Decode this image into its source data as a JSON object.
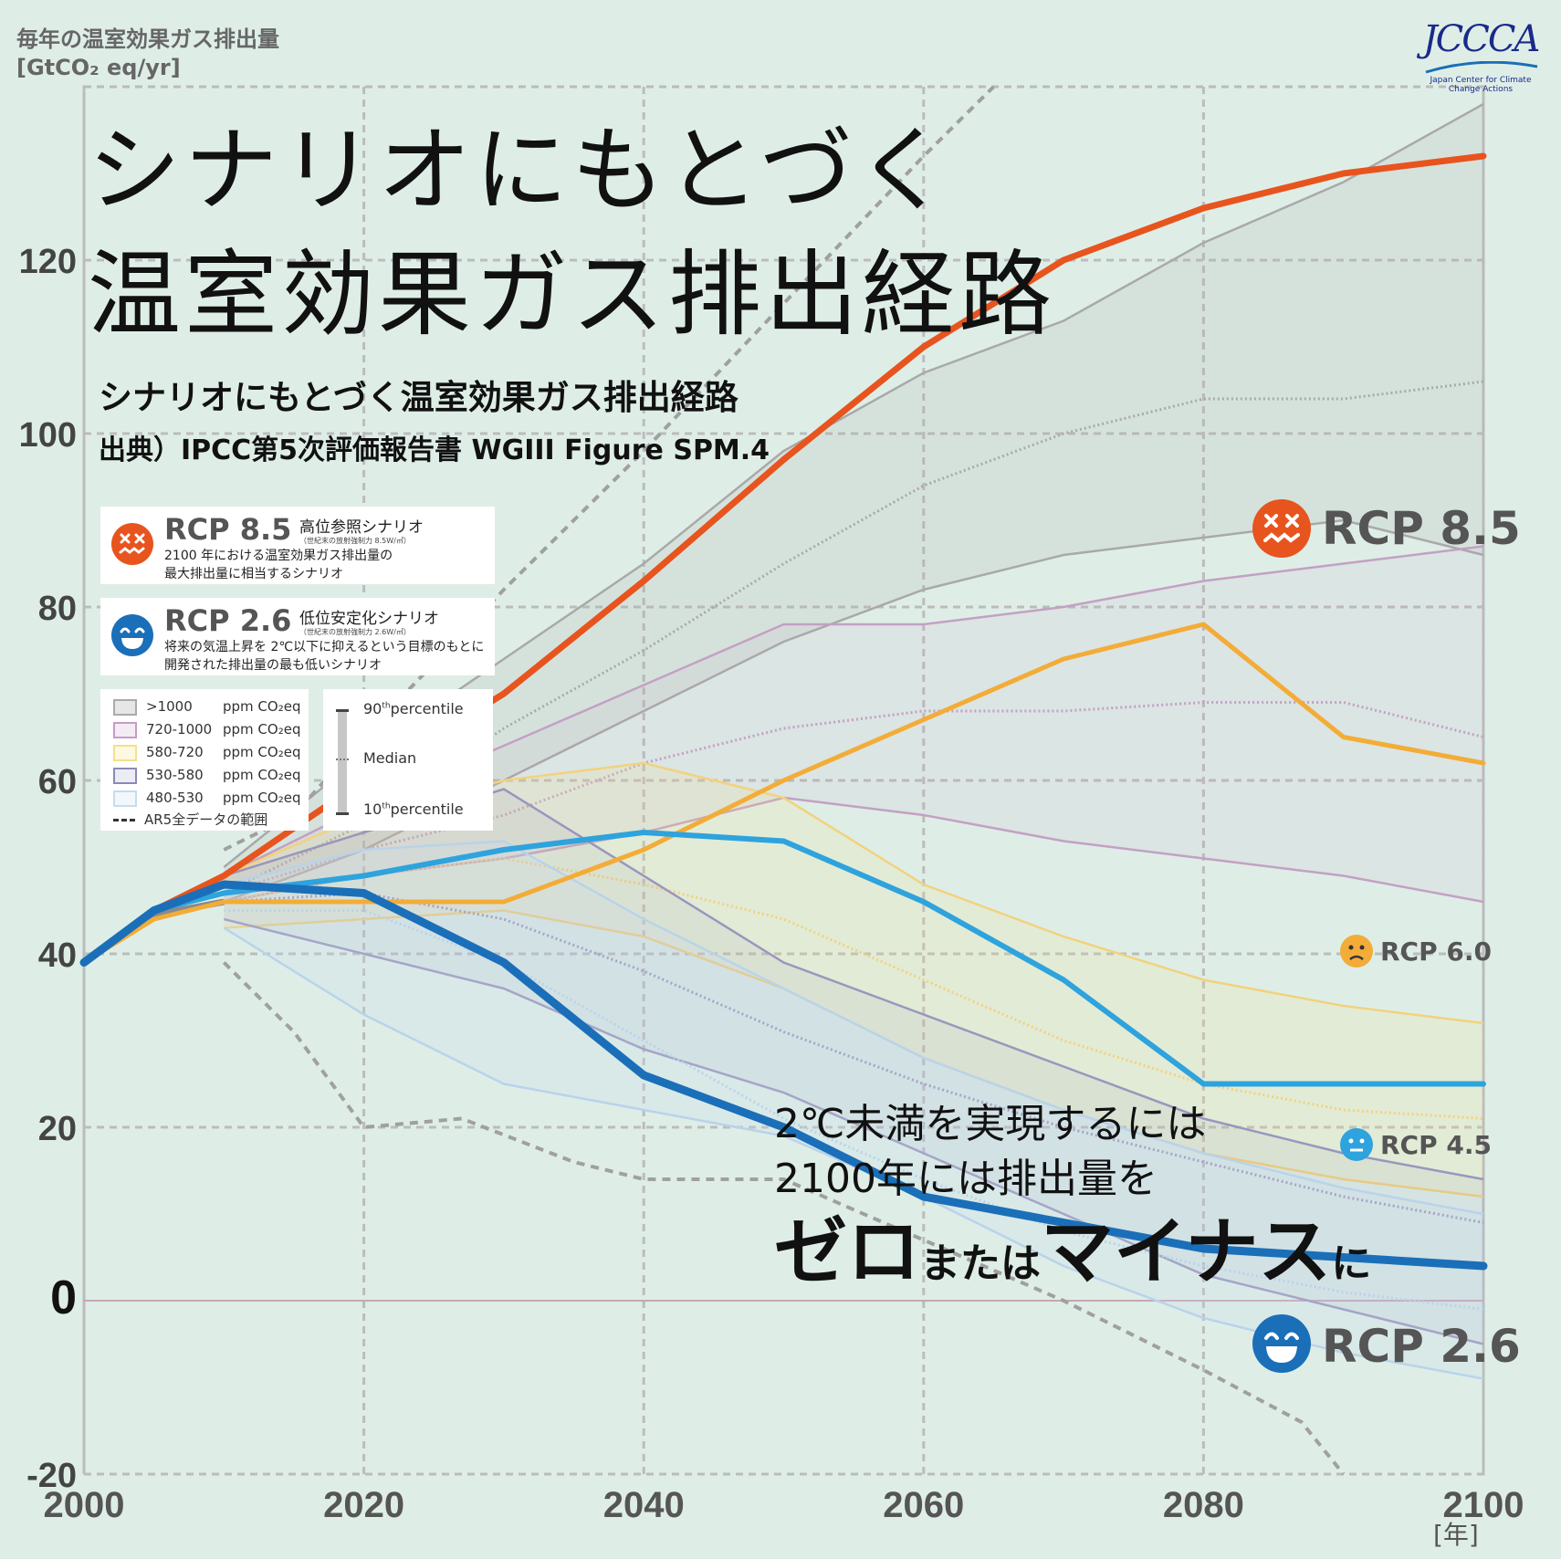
{
  "y_axis_label": [
    "毎年の温室効果ガス排出量",
    "[GtCO₂ eq/yr]"
  ],
  "big_title": [
    "シナリオにもとづく",
    "温室効果ガス排出経路"
  ],
  "subtitle": "シナリオにもとづく温室効果ガス排出経路",
  "source": "出典）IPCC第5次評価報告書 WGIII Figure SPM.4",
  "logo": {
    "mark": "JCCCA",
    "sub": "Japan Center for Climate Change Actions"
  },
  "x_unit": "[年]",
  "cards": {
    "rcp85": {
      "label": "RCP 8.5",
      "name": "高位参照シナリオ",
      "note": "（世紀末の放射強制力 8.5W/㎡）",
      "desc1": "2100 年における温室効果ガス排出量の",
      "desc2": "最大排出量に相当するシナリオ"
    },
    "rcp26": {
      "label": "RCP 2.6",
      "name": "低位安定化シナリオ",
      "note": "（世紀末の放射強制力 2.6W/㎡）",
      "desc1": "将来の気温上昇を 2℃以下に抑えるという目標のもとに",
      "desc2": "開発された排出量の最も低いシナリオ"
    }
  },
  "legend_ppm": [
    {
      "range": ">1000",
      "unit": "ppm CO₂eq",
      "color": "#aaaaaa"
    },
    {
      "range": "720-1000",
      "unit": "ppm CO₂eq",
      "color": "#c79ac7"
    },
    {
      "range": "580-720",
      "unit": "ppm CO₂eq",
      "color": "#f5e08a"
    },
    {
      "range": "530-580",
      "unit": "ppm CO₂eq",
      "color": "#8a8ab8"
    },
    {
      "range": "480-530",
      "unit": "ppm CO₂eq",
      "color": "#c7dcee"
    }
  ],
  "legend_ar5": "AR5全データの範囲",
  "legend_pct": {
    "p90": "90",
    "p10": "10",
    "th": "th",
    "pct_word": "percentile",
    "median": "Median"
  },
  "annotation": {
    "line1": "2℃未満を実現するには",
    "line2": "2100年には排出量を",
    "line3a": "ゼロ",
    "line3b": "または",
    "line3c": "マイナス",
    "line3d": "に"
  },
  "colors": {
    "rcp85": "#e8541e",
    "rcp60": "#f3ac37",
    "rcp45": "#2ea3dd",
    "rcp26": "#1a6fb8",
    "background": "#deeee7"
  },
  "chart_data": {
    "type": "line",
    "xlim": [
      2000,
      2100
    ],
    "ylim": [
      -20,
      140
    ],
    "x_ticks": [
      2000,
      2020,
      2040,
      2060,
      2080,
      2100
    ],
    "y_ticks": [
      -20,
      0,
      20,
      40,
      60,
      80,
      100,
      120
    ],
    "grid": true,
    "series": [
      {
        "name": "RCP 8.5",
        "x": [
          2000,
          2005,
          2010,
          2020,
          2030,
          2040,
          2050,
          2060,
          2070,
          2080,
          2090,
          2100
        ],
        "y": [
          39,
          45,
          49,
          60,
          70,
          83,
          97,
          110,
          120,
          126,
          130,
          132
        ]
      },
      {
        "name": "RCP 6.0",
        "x": [
          2000,
          2005,
          2010,
          2020,
          2030,
          2040,
          2050,
          2060,
          2070,
          2080,
          2090,
          2100
        ],
        "y": [
          39,
          44,
          46,
          46,
          46,
          52,
          60,
          67,
          74,
          78,
          65,
          62
        ]
      },
      {
        "name": "RCP 4.5",
        "x": [
          2000,
          2005,
          2010,
          2020,
          2030,
          2040,
          2050,
          2060,
          2070,
          2080,
          2090,
          2100
        ],
        "y": [
          39,
          45,
          47,
          49,
          52,
          54,
          53,
          46,
          37,
          25,
          25,
          25
        ]
      },
      {
        "name": "RCP 2.6",
        "x": [
          2000,
          2005,
          2010,
          2020,
          2030,
          2040,
          2050,
          2060,
          2070,
          2080,
          2090,
          2100
        ],
        "y": [
          39,
          45,
          48,
          47,
          39,
          26,
          20,
          12,
          9,
          6,
          5,
          4
        ]
      }
    ],
    "scenario_bands": [
      {
        "range": ">1000",
        "x": [
          2010,
          2020,
          2030,
          2040,
          2050,
          2060,
          2070,
          2080,
          2090,
          2100
        ],
        "p90": [
          50,
          63,
          74,
          85,
          98,
          107,
          113,
          122,
          129,
          138
        ],
        "median": [
          47,
          55,
          66,
          75,
          85,
          94,
          100,
          104,
          104,
          106
        ],
        "p10": [
          46,
          52,
          60,
          68,
          76,
          82,
          86,
          88,
          90,
          86
        ]
      },
      {
        "range": "720-1000",
        "x": [
          2010,
          2020,
          2030,
          2040,
          2050,
          2060,
          2070,
          2080,
          2090,
          2100
        ],
        "p90": [
          49,
          57,
          64,
          71,
          78,
          78,
          80,
          83,
          85,
          87
        ],
        "median": [
          47,
          52,
          56,
          62,
          66,
          68,
          68,
          69,
          69,
          65
        ],
        "p10": [
          46,
          49,
          51,
          54,
          58,
          56,
          53,
          51,
          49,
          46
        ]
      },
      {
        "range": "580-720",
        "x": [
          2010,
          2020,
          2030,
          2040,
          2050,
          2060,
          2070,
          2080,
          2090,
          2100
        ],
        "p90": [
          49,
          56,
          60,
          62,
          58,
          48,
          42,
          37,
          34,
          32
        ],
        "median": [
          46,
          49,
          51,
          48,
          44,
          37,
          30,
          25,
          22,
          21
        ],
        "p10": [
          43,
          44,
          45,
          42,
          36,
          28,
          22,
          17,
          14,
          12
        ]
      },
      {
        "range": "530-580",
        "x": [
          2010,
          2020,
          2030,
          2040,
          2050,
          2060,
          2070,
          2080,
          2090,
          2100
        ],
        "p90": [
          49,
          54,
          59,
          49,
          39,
          33,
          27,
          21,
          17,
          14
        ],
        "median": [
          46,
          47,
          44,
          38,
          31,
          25,
          20,
          16,
          12,
          9
        ],
        "p10": [
          44,
          40,
          36,
          29,
          24,
          17,
          10,
          3,
          -1,
          -5
        ]
      },
      {
        "range": "480-530",
        "x": [
          2010,
          2020,
          2030,
          2040,
          2050,
          2060,
          2070,
          2080,
          2090,
          2100
        ],
        "p90": [
          48,
          52,
          53,
          44,
          36,
          28,
          22,
          17,
          13,
          10
        ],
        "median": [
          45,
          45,
          39,
          30,
          21,
          14,
          8,
          4,
          1,
          -1
        ],
        "p10": [
          43,
          33,
          25,
          22,
          19,
          12,
          4,
          -2,
          -6,
          -9
        ]
      }
    ],
    "ar5_range": {
      "upper": {
        "x": [
          2010,
          2015,
          2020,
          2030,
          2040,
          2050,
          2060,
          2065
        ],
        "y": [
          52,
          56,
          65,
          82,
          98,
          115,
          132,
          140
        ]
      },
      "lower": {
        "x": [
          2010,
          2015,
          2020,
          2027,
          2035,
          2040,
          2050,
          2060,
          2070,
          2080,
          2087,
          2090
        ],
        "y": [
          39,
          31,
          20,
          21,
          16,
          14,
          14,
          7,
          0,
          -8,
          -14,
          -20
        ]
      }
    }
  }
}
